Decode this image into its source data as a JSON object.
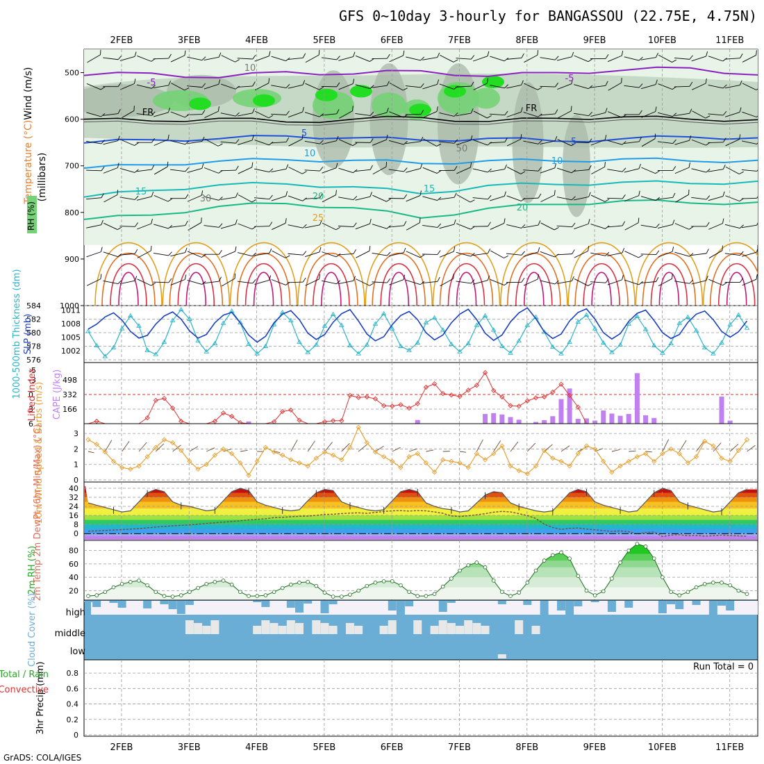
{
  "title": "GFS 0~10day 3-hourly for BANGASSOU (22.75E, 4.75N)",
  "credit": "GrADS: COLA/IGES",
  "run_total": "Run Total = 0",
  "colors": {
    "rh_light": "#e8f4e8",
    "rh_mid": "#c6d9c6",
    "rh_gray": "#a8b8a8",
    "rh_green": "#76d276",
    "rh_bright": "#22dd22",
    "t_neg5": "#8a1fc0",
    "t_0": "#000000",
    "t_5": "#1f4fd8",
    "t_10": "#1f9be8",
    "t_15": "#17b8b8",
    "t_20": "#18b888",
    "t_25": "#e0a020",
    "t_30": "#e07020",
    "t_35": "#d83040",
    "t_40": "#c01878",
    "thickness": "#2ab4c8",
    "slp": "#1a3fc0",
    "lifted": "#e03030",
    "cape": "#c080f0",
    "wind10": "#e8a030",
    "rh2m": "#22aa22",
    "cloud": "#6aaed6",
    "cloud_bg": "#f4f2f8"
  },
  "chart_data": [
    {
      "type": "heatmap",
      "panel": "upper-air",
      "ylabel_parts": [
        "Wind (m/s)",
        "Temperature (°C)",
        "(millibars)"
      ],
      "legend_label": "RH (%)",
      "x": [
        "2FEB",
        "3FEB",
        "4FEB",
        "5FEB",
        "6FEB",
        "7FEB",
        "8FEB",
        "9FEB",
        "10FEB",
        "11FEB"
      ],
      "ylim": [
        1000,
        450
      ],
      "yticks": [
        500,
        600,
        700,
        800,
        900,
        1000
      ],
      "contour_labels": [
        "-5",
        "FR",
        "5",
        "10",
        "15",
        "20",
        "25",
        "-5",
        "FR",
        "5",
        "10",
        "15",
        "20",
        "50",
        "30",
        "10"
      ],
      "isotherms": [
        {
          "name": "-5",
          "y": [
            506,
            501,
            511,
            498,
            503,
            496,
            508,
            500,
            495,
            490,
            505
          ]
        },
        {
          "name": "FR",
          "y": [
            600,
            604,
            598,
            606,
            600,
            596,
            605,
            598,
            595,
            600,
            601
          ]
        },
        {
          "name": "5",
          "y": [
            651,
            644,
            642,
            636,
            640,
            645,
            641,
            647,
            642,
            638,
            640
          ]
        },
        {
          "name": "10",
          "y": [
            705,
            698,
            690,
            687,
            688,
            695,
            689,
            690,
            685,
            690,
            688
          ]
        },
        {
          "name": "15",
          "y": [
            767,
            753,
            741,
            739,
            745,
            760,
            742,
            740,
            735,
            738,
            733
          ]
        },
        {
          "name": "20",
          "y": [
            815,
            806,
            787,
            781,
            790,
            812,
            791,
            783,
            775,
            780,
            778
          ]
        }
      ]
    },
    {
      "type": "line",
      "panel": "thickness-slp",
      "ylabel_left": "1000-500mb Thickness (dm)",
      "ylabel_right": "SLP (mb)",
      "yticks_left": [
        576,
        578,
        580,
        582,
        584
      ],
      "yticks_right": [
        1002,
        1005,
        1008,
        1011
      ],
      "series": [
        {
          "name": "Thickness",
          "values": [
            580.2,
            578.1,
            576.5,
            577.8,
            580.6,
            582.5,
            581.0,
            577.4,
            576.8,
            578.6,
            581.8,
            583.4,
            582.0,
            578.8,
            577.2,
            578.4,
            581.4,
            583.2,
            581.5,
            578.3,
            576.9,
            578.0,
            581.2,
            583.0,
            581.8,
            578.6,
            577.1,
            578.2,
            581.0,
            582.7,
            581.1,
            578.1,
            576.9,
            578.2,
            581.3,
            582.8,
            580.6,
            578.0,
            577.4,
            578.5,
            581.5,
            582.2,
            580.4,
            578.3,
            577.2,
            578.4,
            581.1,
            582.5,
            580.4,
            578.0,
            577.0,
            578.8,
            581.1,
            582.3,
            580.1,
            577.9,
            576.9,
            578.6,
            581.6,
            582.6,
            580.6,
            578.5,
            577.1,
            578.2,
            581.3,
            582.4,
            580.5,
            578.1,
            577.0,
            578.4,
            581.4,
            582.3,
            580.3,
            577.8,
            576.9,
            578.5,
            581.2,
            582.6,
            580.7
          ]
        },
        {
          "name": "SLP",
          "values": [
            1006.8,
            1007.9,
            1009.5,
            1010.4,
            1008.8,
            1006.3,
            1004.8,
            1005.4,
            1007.9,
            1009.7,
            1010.6,
            1009.0,
            1006.4,
            1004.8,
            1005.6,
            1008.2,
            1009.9,
            1010.5,
            1008.2,
            1005.5,
            1003.9,
            1005.2,
            1008.2,
            1010.1,
            1010.9,
            1008.9,
            1005.9,
            1004.5,
            1005.6,
            1008.3,
            1010.2,
            1011.1,
            1008.6,
            1005.7,
            1004.2,
            1005.1,
            1007.8,
            1009.8,
            1010.7,
            1008.9,
            1006.0,
            1004.4,
            1005.5,
            1008.2,
            1010.1,
            1011.2,
            1008.9,
            1005.9,
            1004.3,
            1005.5,
            1008.4,
            1010.4,
            1011.5,
            1009.1,
            1006.2,
            1004.7,
            1005.7,
            1008.6,
            1010.5,
            1011.3,
            1009.0,
            1006.0,
            1004.6,
            1005.8,
            1008.5,
            1010.3,
            1011.0,
            1008.7,
            1006.0,
            1004.7,
            1005.6,
            1008.3,
            1010.1,
            1010.8,
            1008.9,
            1006.3,
            1005.0,
            1006.2,
            1008.6
          ]
        }
      ]
    },
    {
      "type": "bar",
      "panel": "cape-lifted",
      "ylabel_left": "Lifted Index",
      "ylabel_right": "CAPE (J/kg)",
      "yticks_left": [
        -5,
        -3,
        0,
        3,
        6
      ],
      "yticks_right": [
        166,
        332,
        498
      ],
      "series": [
        {
          "name": "Lifted Index",
          "values": [
            6,
            5.5,
            6,
            6,
            6,
            6,
            6,
            4.8,
            1.2,
            0.8,
            2.8,
            5.5,
            6,
            6,
            6,
            5.5,
            3.8,
            4.5,
            5.8,
            6,
            6,
            6,
            5.6,
            3.5,
            3.2,
            5.3,
            6,
            6,
            5.6,
            5.4,
            5.4,
            0.2,
            0.6,
            0.5,
            0.9,
            2.3,
            2.4,
            2.1,
            2.8,
            1.9,
            -1.5,
            -2.2,
            -0.2,
            0.1,
            0.4,
            -0.9,
            -1.9,
            -4.5,
            -0.8,
            0.5,
            2.3,
            2.4,
            1.3,
            0.7,
            0.5,
            -0.5,
            -2.1,
            0.2,
            2.6,
            6,
            6,
            6,
            6,
            6,
            6,
            6,
            6,
            6,
            6,
            6,
            6,
            6,
            6,
            6,
            6,
            6,
            6,
            6,
            6,
            6
          ]
        },
        {
          "name": "CAPE",
          "values": [
            0,
            0,
            0,
            0,
            0,
            0,
            0,
            0,
            0,
            0,
            0,
            0,
            0,
            0,
            0,
            0,
            0,
            0,
            0,
            25,
            0,
            0,
            0,
            0,
            0,
            0,
            0,
            0,
            0,
            0,
            0,
            0,
            0,
            0,
            0,
            0,
            0,
            0,
            0,
            42,
            0,
            0,
            0,
            0,
            0,
            0,
            0,
            110,
            120,
            105,
            75,
            45,
            0,
            20,
            40,
            85,
            280,
            400,
            55,
            60,
            35,
            150,
            115,
            90,
            110,
            575,
            95,
            65,
            0,
            0,
            0,
            0,
            0,
            0,
            0,
            308,
            35,
            0,
            0,
            0
          ]
        }
      ]
    },
    {
      "type": "line",
      "panel": "wind10",
      "ylabel": "10m Wind Speed & Barbs (m/s)",
      "yticks": [
        0,
        1,
        2,
        3
      ],
      "series": [
        {
          "name": "Speed",
          "values": [
            2.6,
            2.3,
            1.8,
            1.2,
            0.8,
            0.7,
            0.9,
            1.5,
            2.1,
            2.6,
            2.4,
            1.9,
            1.2,
            0.7,
            1.0,
            1.6,
            2.0,
            1.7,
            1.1,
            0.3,
            1.2,
            2.1,
            1.8,
            1.6,
            1.3,
            1.1,
            0.9,
            1.4,
            1.8,
            1.6,
            1.3,
            2.1,
            3.4,
            2.4,
            1.8,
            1.5,
            1.2,
            0.8,
            1.5,
            1.7,
            1.1,
            0.5,
            1.3,
            1.2,
            1.1,
            0.8,
            1.7,
            1.3,
            1.7,
            2.2,
            0.9,
            0.6,
            0.4,
            0.9,
            1.9,
            1.4,
            1.2,
            0.9,
            1.7,
            2.2,
            2.0,
            1.2,
            0.5,
            0.9,
            1.2,
            1.5,
            1.7,
            1.2,
            1.7,
            2.0,
            1.7,
            1.1,
            1.5,
            2.5,
            2.2,
            1.4,
            1.2,
            1.9,
            2.6
          ]
        }
      ]
    },
    {
      "type": "area",
      "panel": "temp2m",
      "ylabel": "2m Temp 2m DewPt (6hr Min/Max) (°C)",
      "yticks": [
        0,
        8,
        16,
        24,
        32,
        40
      ],
      "series": [
        {
          "name": "2m Temp",
          "values": [
            27,
            25,
            23,
            21,
            19,
            20,
            28,
            36,
            39,
            37,
            28,
            25,
            24,
            22,
            20,
            21,
            29,
            37,
            40,
            38,
            28,
            25,
            23,
            21,
            20,
            21,
            29,
            36,
            39,
            38,
            28,
            25,
            23,
            21,
            20,
            21,
            29,
            37,
            39,
            37,
            27,
            24,
            22,
            21,
            19,
            20,
            27,
            34,
            37,
            36,
            27,
            24,
            22,
            20,
            19,
            20,
            28,
            36,
            39,
            37,
            28,
            25,
            23,
            21,
            19,
            20,
            28,
            36,
            40,
            38,
            28,
            25,
            23,
            21,
            19,
            20,
            28,
            36,
            39
          ]
        },
        {
          "name": "2m DewPt",
          "values": [
            2,
            2.3,
            2.6,
            3,
            3.4,
            3.8,
            4.2,
            5,
            5.6,
            6.2,
            6.7,
            7.2,
            7.5,
            8.2,
            8.8,
            9.4,
            10,
            10.6,
            11.2,
            12,
            12.5,
            13,
            14,
            14.2,
            14.8,
            15.2,
            15.4,
            16,
            16.8,
            17,
            17.6,
            18,
            18.2,
            17.8,
            18.5,
            19.5,
            20,
            20.2,
            19.8,
            20.2,
            20,
            19,
            17.8,
            15.5,
            15,
            15.6,
            16.5,
            17.5,
            18.8,
            19.5,
            19,
            17.5,
            15.8,
            13.2,
            8.2,
            5.2,
            3.5,
            4.5,
            4.8,
            3.8,
            3.2,
            2.5,
            1.8,
            2.2,
            1.5,
            -0.5,
            0.8,
            1.2,
            -2.8,
            -1.5,
            -1.2,
            -2,
            -1.8,
            -2.4,
            -2,
            -1.5,
            -1.8,
            -2.2,
            -2.5
          ]
        }
      ]
    },
    {
      "type": "area",
      "panel": "rh2m",
      "ylabel": "2m RH (%)",
      "yticks": [
        20,
        40,
        60,
        80
      ],
      "series": [
        {
          "name": "2m RH",
          "values": [
            12,
            13,
            18,
            25,
            30,
            33,
            35,
            28,
            18,
            12,
            11,
            13,
            18,
            24,
            30,
            33,
            35,
            29,
            18,
            12,
            12,
            13,
            18,
            24,
            29,
            32,
            33,
            27,
            17,
            11,
            11,
            14,
            20,
            27,
            32,
            34,
            34,
            28,
            18,
            12,
            12,
            15,
            26,
            38,
            50,
            58,
            62,
            55,
            35,
            18,
            12,
            17,
            32,
            50,
            65,
            73,
            77,
            68,
            42,
            20,
            13,
            19,
            38,
            62,
            80,
            90,
            86,
            68,
            40,
            18,
            13,
            18,
            25,
            30,
            32,
            32,
            28,
            20,
            15
          ]
        }
      ]
    },
    {
      "type": "bar",
      "panel": "cloud",
      "ylabel": "Cloud Cover (%)",
      "ytick_labels": [
        "high",
        "middle",
        "low"
      ]
    },
    {
      "type": "bar",
      "panel": "precip",
      "ylabel": "3hr Precip (mm)",
      "legend_labels": [
        "Total / Rain",
        "Convective"
      ],
      "yticks": [
        0,
        0.2,
        0.4,
        0.6,
        0.8
      ],
      "categories": [
        "2FEB",
        "3FEB",
        "4FEB",
        "5FEB",
        "6FEB",
        "7FEB",
        "8FEB",
        "9FEB",
        "10FEB",
        "11FEB"
      ],
      "values": [
        0,
        0,
        0,
        0,
        0,
        0,
        0,
        0,
        0,
        0
      ]
    }
  ]
}
